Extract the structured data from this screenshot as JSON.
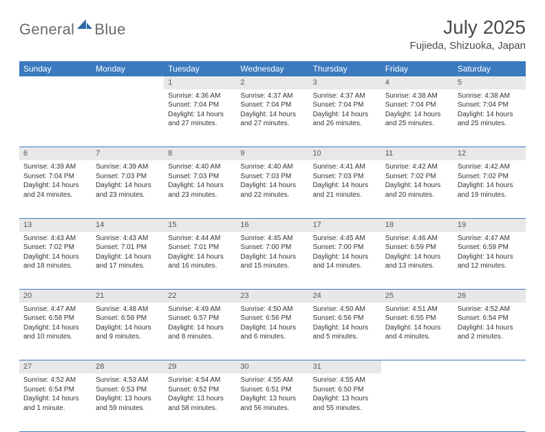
{
  "brand": {
    "word1": "General",
    "word2": "Blue"
  },
  "title": "July 2025",
  "location": "Fujieda, Shizuoka, Japan",
  "colors": {
    "header_bg": "#3b7abf",
    "header_text": "#ffffff",
    "daynum_bg": "#e8e8e8",
    "row_border": "#3b7abf",
    "page_bg": "#ffffff",
    "body_text": "#333333",
    "title_text": "#4a4a4a"
  },
  "fonts": {
    "title_size_pt": 21,
    "location_size_pt": 11,
    "weekday_size_pt": 9,
    "daynum_size_pt": 8,
    "body_size_pt": 7.5
  },
  "weekdays": [
    "Sunday",
    "Monday",
    "Tuesday",
    "Wednesday",
    "Thursday",
    "Friday",
    "Saturday"
  ],
  "weeks": [
    [
      null,
      null,
      {
        "n": "1",
        "sr": "Sunrise: 4:36 AM",
        "ss": "Sunset: 7:04 PM",
        "dl1": "Daylight: 14 hours",
        "dl2": "and 27 minutes."
      },
      {
        "n": "2",
        "sr": "Sunrise: 4:37 AM",
        "ss": "Sunset: 7:04 PM",
        "dl1": "Daylight: 14 hours",
        "dl2": "and 27 minutes."
      },
      {
        "n": "3",
        "sr": "Sunrise: 4:37 AM",
        "ss": "Sunset: 7:04 PM",
        "dl1": "Daylight: 14 hours",
        "dl2": "and 26 minutes."
      },
      {
        "n": "4",
        "sr": "Sunrise: 4:38 AM",
        "ss": "Sunset: 7:04 PM",
        "dl1": "Daylight: 14 hours",
        "dl2": "and 25 minutes."
      },
      {
        "n": "5",
        "sr": "Sunrise: 4:38 AM",
        "ss": "Sunset: 7:04 PM",
        "dl1": "Daylight: 14 hours",
        "dl2": "and 25 minutes."
      }
    ],
    [
      {
        "n": "6",
        "sr": "Sunrise: 4:39 AM",
        "ss": "Sunset: 7:04 PM",
        "dl1": "Daylight: 14 hours",
        "dl2": "and 24 minutes."
      },
      {
        "n": "7",
        "sr": "Sunrise: 4:39 AM",
        "ss": "Sunset: 7:03 PM",
        "dl1": "Daylight: 14 hours",
        "dl2": "and 23 minutes."
      },
      {
        "n": "8",
        "sr": "Sunrise: 4:40 AM",
        "ss": "Sunset: 7:03 PM",
        "dl1": "Daylight: 14 hours",
        "dl2": "and 23 minutes."
      },
      {
        "n": "9",
        "sr": "Sunrise: 4:40 AM",
        "ss": "Sunset: 7:03 PM",
        "dl1": "Daylight: 14 hours",
        "dl2": "and 22 minutes."
      },
      {
        "n": "10",
        "sr": "Sunrise: 4:41 AM",
        "ss": "Sunset: 7:03 PM",
        "dl1": "Daylight: 14 hours",
        "dl2": "and 21 minutes."
      },
      {
        "n": "11",
        "sr": "Sunrise: 4:42 AM",
        "ss": "Sunset: 7:02 PM",
        "dl1": "Daylight: 14 hours",
        "dl2": "and 20 minutes."
      },
      {
        "n": "12",
        "sr": "Sunrise: 4:42 AM",
        "ss": "Sunset: 7:02 PM",
        "dl1": "Daylight: 14 hours",
        "dl2": "and 19 minutes."
      }
    ],
    [
      {
        "n": "13",
        "sr": "Sunrise: 4:43 AM",
        "ss": "Sunset: 7:02 PM",
        "dl1": "Daylight: 14 hours",
        "dl2": "and 18 minutes."
      },
      {
        "n": "14",
        "sr": "Sunrise: 4:43 AM",
        "ss": "Sunset: 7:01 PM",
        "dl1": "Daylight: 14 hours",
        "dl2": "and 17 minutes."
      },
      {
        "n": "15",
        "sr": "Sunrise: 4:44 AM",
        "ss": "Sunset: 7:01 PM",
        "dl1": "Daylight: 14 hours",
        "dl2": "and 16 minutes."
      },
      {
        "n": "16",
        "sr": "Sunrise: 4:45 AM",
        "ss": "Sunset: 7:00 PM",
        "dl1": "Daylight: 14 hours",
        "dl2": "and 15 minutes."
      },
      {
        "n": "17",
        "sr": "Sunrise: 4:45 AM",
        "ss": "Sunset: 7:00 PM",
        "dl1": "Daylight: 14 hours",
        "dl2": "and 14 minutes."
      },
      {
        "n": "18",
        "sr": "Sunrise: 4:46 AM",
        "ss": "Sunset: 6:59 PM",
        "dl1": "Daylight: 14 hours",
        "dl2": "and 13 minutes."
      },
      {
        "n": "19",
        "sr": "Sunrise: 4:47 AM",
        "ss": "Sunset: 6:59 PM",
        "dl1": "Daylight: 14 hours",
        "dl2": "and 12 minutes."
      }
    ],
    [
      {
        "n": "20",
        "sr": "Sunrise: 4:47 AM",
        "ss": "Sunset: 6:58 PM",
        "dl1": "Daylight: 14 hours",
        "dl2": "and 10 minutes."
      },
      {
        "n": "21",
        "sr": "Sunrise: 4:48 AM",
        "ss": "Sunset: 6:58 PM",
        "dl1": "Daylight: 14 hours",
        "dl2": "and 9 minutes."
      },
      {
        "n": "22",
        "sr": "Sunrise: 4:49 AM",
        "ss": "Sunset: 6:57 PM",
        "dl1": "Daylight: 14 hours",
        "dl2": "and 8 minutes."
      },
      {
        "n": "23",
        "sr": "Sunrise: 4:50 AM",
        "ss": "Sunset: 6:56 PM",
        "dl1": "Daylight: 14 hours",
        "dl2": "and 6 minutes."
      },
      {
        "n": "24",
        "sr": "Sunrise: 4:50 AM",
        "ss": "Sunset: 6:56 PM",
        "dl1": "Daylight: 14 hours",
        "dl2": "and 5 minutes."
      },
      {
        "n": "25",
        "sr": "Sunrise: 4:51 AM",
        "ss": "Sunset: 6:55 PM",
        "dl1": "Daylight: 14 hours",
        "dl2": "and 4 minutes."
      },
      {
        "n": "26",
        "sr": "Sunrise: 4:52 AM",
        "ss": "Sunset: 6:54 PM",
        "dl1": "Daylight: 14 hours",
        "dl2": "and 2 minutes."
      }
    ],
    [
      {
        "n": "27",
        "sr": "Sunrise: 4:52 AM",
        "ss": "Sunset: 6:54 PM",
        "dl1": "Daylight: 14 hours",
        "dl2": "and 1 minute."
      },
      {
        "n": "28",
        "sr": "Sunrise: 4:53 AM",
        "ss": "Sunset: 6:53 PM",
        "dl1": "Daylight: 13 hours",
        "dl2": "and 59 minutes."
      },
      {
        "n": "29",
        "sr": "Sunrise: 4:54 AM",
        "ss": "Sunset: 6:52 PM",
        "dl1": "Daylight: 13 hours",
        "dl2": "and 58 minutes."
      },
      {
        "n": "30",
        "sr": "Sunrise: 4:55 AM",
        "ss": "Sunset: 6:51 PM",
        "dl1": "Daylight: 13 hours",
        "dl2": "and 56 minutes."
      },
      {
        "n": "31",
        "sr": "Sunrise: 4:55 AM",
        "ss": "Sunset: 6:50 PM",
        "dl1": "Daylight: 13 hours",
        "dl2": "and 55 minutes."
      },
      null,
      null
    ]
  ]
}
